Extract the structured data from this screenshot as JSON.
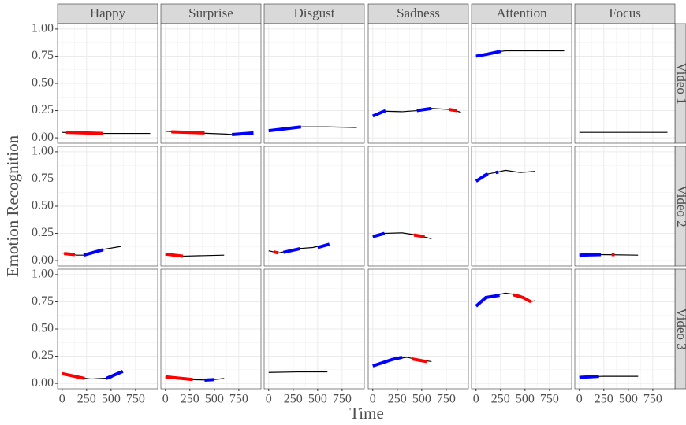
{
  "chart_data": {
    "type": "line",
    "columns": [
      "Happy",
      "Surprise",
      "Disgust",
      "Sadness",
      "Attention",
      "Focus"
    ],
    "rows": [
      "Video 1",
      "Video 2",
      "Video 3"
    ],
    "xlabel": "Time",
    "ylabel": "Emotion Recognition",
    "xlim": [
      -46.5,
      976.5
    ],
    "xticks": [
      0,
      250,
      500,
      750
    ],
    "ylim": [
      -0.05,
      1.05
    ],
    "yticks": [
      {
        "value": 0,
        "label": "0.00"
      },
      {
        "value": 0.25,
        "label": "0.25"
      },
      {
        "value": 0.5,
        "label": "0.50"
      },
      {
        "value": 0.75,
        "label": "0.75"
      },
      {
        "value": 1,
        "label": "1.00"
      }
    ],
    "grid": true,
    "panels": [
      [
        {
          "series": [
            {
              "color": "#000000",
              "x": [
                0,
                300,
                600,
                900
              ],
              "values": [
                0.05,
                0.04,
                0.04,
                0.04
              ]
            },
            {
              "color": "#ff0000",
              "x": [
                40,
                420
              ],
              "values": [
                0.05,
                0.04
              ]
            }
          ]
        },
        {
          "series": [
            {
              "color": "#000000",
              "x": [
                0,
                300,
                600,
                700,
                900
              ],
              "values": [
                0.06,
                0.045,
                0.035,
                0.03,
                0.04
              ]
            },
            {
              "color": "#ff0000",
              "x": [
                60,
                400
              ],
              "values": [
                0.055,
                0.045
              ]
            },
            {
              "color": "#0000ff",
              "x": [
                680,
                900
              ],
              "values": [
                0.03,
                0.045
              ]
            }
          ]
        },
        {
          "series": [
            {
              "color": "#000000",
              "x": [
                0,
                300,
                600,
                900
              ],
              "values": [
                0.065,
                0.1,
                0.1,
                0.095
              ]
            },
            {
              "color": "#0000ff",
              "x": [
                0,
                330
              ],
              "values": [
                0.065,
                0.1
              ]
            }
          ]
        },
        {
          "series": [
            {
              "color": "#000000",
              "x": [
                0,
                100,
                300,
                450,
                600,
                800,
                900
              ],
              "values": [
                0.2,
                0.245,
                0.24,
                0.25,
                0.27,
                0.26,
                0.235
              ]
            },
            {
              "color": "#0000ff",
              "x": [
                0,
                130
              ],
              "values": [
                0.2,
                0.25
              ]
            },
            {
              "color": "#0000ff",
              "x": [
                450,
                600
              ],
              "values": [
                0.25,
                0.27
              ]
            },
            {
              "color": "#ff0000",
              "x": [
                780,
                860
              ],
              "values": [
                0.26,
                0.25
              ]
            }
          ]
        },
        {
          "series": [
            {
              "color": "#000000",
              "x": [
                0,
                200,
                300,
                900
              ],
              "values": [
                0.75,
                0.79,
                0.8,
                0.8
              ]
            },
            {
              "color": "#0000ff",
              "x": [
                0,
                120,
                250
              ],
              "values": [
                0.75,
                0.77,
                0.795
              ]
            }
          ]
        },
        {
          "series": [
            {
              "color": "#000000",
              "x": [
                0,
                900
              ],
              "values": [
                0.05,
                0.05
              ]
            }
          ]
        }
      ],
      [
        {
          "series": [
            {
              "color": "#000000",
              "x": [
                0,
                150,
                250,
                400,
                600
              ],
              "values": [
                0.07,
                0.05,
                0.05,
                0.1,
                0.13
              ]
            },
            {
              "color": "#ff0000",
              "x": [
                20,
                130
              ],
              "values": [
                0.065,
                0.055
              ]
            },
            {
              "color": "#0000ff",
              "x": [
                220,
                420
              ],
              "values": [
                0.05,
                0.1
              ]
            }
          ]
        },
        {
          "series": [
            {
              "color": "#000000",
              "x": [
                0,
                150,
                600
              ],
              "values": [
                0.06,
                0.04,
                0.05
              ]
            },
            {
              "color": "#ff0000",
              "x": [
                0,
                180
              ],
              "values": [
                0.06,
                0.04
              ]
            }
          ]
        },
        {
          "series": [
            {
              "color": "#000000",
              "x": [
                0,
                100,
                300,
                450,
                600
              ],
              "values": [
                0.09,
                0.07,
                0.11,
                0.12,
                0.15
              ]
            },
            {
              "color": "#ff0000",
              "x": [
                50,
                100
              ],
              "values": [
                0.08,
                0.07
              ]
            },
            {
              "color": "#0000ff",
              "x": [
                150,
                320
              ],
              "values": [
                0.075,
                0.11
              ]
            },
            {
              "color": "#0000ff",
              "x": [
                500,
                620
              ],
              "values": [
                0.12,
                0.15
              ]
            }
          ]
        },
        {
          "series": [
            {
              "color": "#000000",
              "x": [
                0,
                100,
                300,
                450,
                600
              ],
              "values": [
                0.22,
                0.25,
                0.255,
                0.235,
                0.2
              ]
            },
            {
              "color": "#0000ff",
              "x": [
                0,
                120
              ],
              "values": [
                0.22,
                0.25
              ]
            },
            {
              "color": "#ff0000",
              "x": [
                420,
                530
              ],
              "values": [
                0.235,
                0.22
              ]
            }
          ]
        },
        {
          "series": [
            {
              "color": "#000000",
              "x": [
                0,
                80,
                200,
                300,
                450,
                600
              ],
              "values": [
                0.73,
                0.79,
                0.81,
                0.83,
                0.81,
                0.82
              ]
            },
            {
              "color": "#0000ff",
              "x": [
                0,
                120
              ],
              "values": [
                0.73,
                0.8
              ]
            },
            {
              "color": "#0000ff",
              "x": [
                200,
                230
              ],
              "values": [
                0.81,
                0.815
              ]
            }
          ]
        },
        {
          "series": [
            {
              "color": "#000000",
              "x": [
                0,
                200,
                600
              ],
              "values": [
                0.05,
                0.055,
                0.05
              ]
            },
            {
              "color": "#0000ff",
              "x": [
                0,
                220
              ],
              "values": [
                0.05,
                0.055
              ]
            },
            {
              "color": "#ff0000",
              "x": [
                330,
                360
              ],
              "values": [
                0.055,
                0.055
              ]
            }
          ]
        }
      ],
      [
        {
          "series": [
            {
              "color": "#000000",
              "x": [
                0,
                200,
                300,
                500,
                600
              ],
              "values": [
                0.09,
                0.05,
                0.04,
                0.05,
                0.11
              ]
            },
            {
              "color": "#ff0000",
              "x": [
                0,
                230
              ],
              "values": [
                0.09,
                0.045
              ]
            },
            {
              "color": "#0000ff",
              "x": [
                450,
                620
              ],
              "values": [
                0.045,
                0.11
              ]
            }
          ]
        },
        {
          "series": [
            {
              "color": "#000000",
              "x": [
                0,
                250,
                450,
                600
              ],
              "values": [
                0.06,
                0.035,
                0.03,
                0.045
              ]
            },
            {
              "color": "#ff0000",
              "x": [
                0,
                280
              ],
              "values": [
                0.06,
                0.035
              ]
            },
            {
              "color": "#0000ff",
              "x": [
                400,
                500
              ],
              "values": [
                0.03,
                0.035
              ]
            }
          ]
        },
        {
          "series": [
            {
              "color": "#000000",
              "x": [
                0,
                300,
                600
              ],
              "values": [
                0.1,
                0.105,
                0.105
              ]
            }
          ]
        },
        {
          "series": [
            {
              "color": "#000000",
              "x": [
                0,
                200,
                350,
                450,
                600
              ],
              "values": [
                0.16,
                0.22,
                0.24,
                0.22,
                0.2
              ]
            },
            {
              "color": "#0000ff",
              "x": [
                0,
                200,
                300
              ],
              "values": [
                0.16,
                0.22,
                0.24
              ]
            },
            {
              "color": "#ff0000",
              "x": [
                400,
                550
              ],
              "values": [
                0.225,
                0.2
              ]
            }
          ]
        },
        {
          "series": [
            {
              "color": "#000000",
              "x": [
                0,
                100,
                300,
                450,
                550,
                600
              ],
              "values": [
                0.71,
                0.79,
                0.83,
                0.81,
                0.75,
                0.76
              ]
            },
            {
              "color": "#0000ff",
              "x": [
                0,
                100,
                240
              ],
              "values": [
                0.71,
                0.79,
                0.81
              ]
            },
            {
              "color": "#ff0000",
              "x": [
                380,
                480,
                560
              ],
              "values": [
                0.815,
                0.79,
                0.75
              ]
            }
          ]
        },
        {
          "series": [
            {
              "color": "#000000",
              "x": [
                0,
                250,
                600
              ],
              "values": [
                0.06,
                0.065,
                0.065
              ]
            },
            {
              "color": "#0000ff",
              "x": [
                0,
                200
              ],
              "values": [
                0.055,
                0.065
              ]
            }
          ]
        }
      ]
    ]
  }
}
